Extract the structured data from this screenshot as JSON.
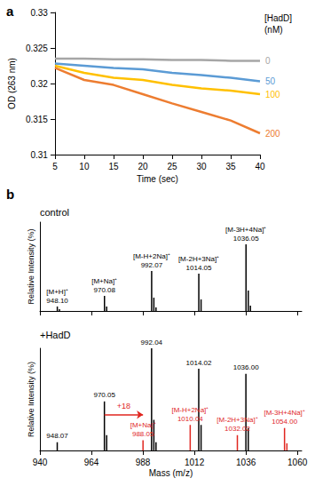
{
  "chart_data": [
    {
      "type": "line",
      "label": "a",
      "x_label": "Time (sec)",
      "y_label": "OD (263 nm)",
      "legend_title": [
        "[HadD]",
        "(nM)"
      ],
      "x": [
        5,
        10,
        15,
        20,
        25,
        30,
        35,
        40
      ],
      "xlim": [
        5,
        40
      ],
      "xticks": [
        5,
        10,
        15,
        20,
        25,
        30,
        35,
        40
      ],
      "ylim": [
        0.31,
        0.33
      ],
      "yticks": [
        0.31,
        0.315,
        0.32,
        0.325,
        0.33
      ],
      "grid": false,
      "series": [
        {
          "name": "0",
          "color": "#a6a6a6",
          "values": [
            0.3235,
            0.3235,
            0.3234,
            0.3234,
            0.3233,
            0.3233,
            0.3232,
            0.3232
          ]
        },
        {
          "name": "50",
          "color": "#5b9bd5",
          "values": [
            0.3228,
            0.3225,
            0.3222,
            0.322,
            0.3215,
            0.3212,
            0.3208,
            0.3203
          ]
        },
        {
          "name": "100",
          "color": "#ffc000",
          "values": [
            0.3225,
            0.3215,
            0.3208,
            0.3205,
            0.3198,
            0.3193,
            0.319,
            0.3185
          ]
        },
        {
          "name": "200",
          "color": "#ed7d31",
          "values": [
            0.3222,
            0.3205,
            0.3198,
            0.3185,
            0.3172,
            0.316,
            0.3148,
            0.313
          ]
        }
      ]
    },
    {
      "type": "bar",
      "label": "b",
      "title": "control",
      "y_label": "Relative Intensity (%)",
      "xlim": [
        940,
        1062
      ],
      "xticks": [
        940,
        964,
        988,
        1012,
        1036,
        1060
      ],
      "ylim": [
        0,
        100
      ],
      "tick_labels": false,
      "x": [
        948.1,
        949.1,
        970.08,
        971.1,
        992.07,
        993.1,
        994.1,
        1014.05,
        1015.1,
        1036.05,
        1037.1,
        1038.1
      ],
      "values": [
        5,
        2,
        17,
        5,
        45,
        15,
        4,
        42,
        13,
        75,
        23,
        6
      ],
      "colors": [
        "#000000",
        "#000000",
        "#000000",
        "#000000",
        "#000000",
        "#000000",
        "#000000",
        "#000000",
        "#000000",
        "#000000",
        "#000000",
        "#000000"
      ],
      "ion_labels": [
        "[M+H]⁺",
        null,
        "[M+Na]⁺",
        null,
        "[M-H+2Na]⁺",
        null,
        null,
        "[M-2H+3Na]⁺",
        null,
        "[M-3H+4Na]⁺",
        null,
        null
      ],
      "peak_labels": [
        "948.10",
        null,
        "970.08",
        null,
        "992.07",
        null,
        null,
        "1014.05",
        null,
        "1036.05",
        null,
        null
      ]
    },
    {
      "type": "bar",
      "title": "+HadD",
      "x_label": "Mass (m/z)",
      "y_label": "Relative Intensity (%)",
      "xlim": [
        940,
        1062
      ],
      "xticks": [
        940,
        964,
        988,
        1012,
        1036,
        1060
      ],
      "ylim": [
        0,
        100
      ],
      "tick_labels": "x",
      "x": [
        948.07,
        970.05,
        971.1,
        988.05,
        992.04,
        993.1,
        994.1,
        1010.04,
        1014.02,
        1015.1,
        1032.02,
        1036.0,
        1037.1,
        1054.0,
        1055.1
      ],
      "values": [
        8,
        48,
        15,
        10,
        100,
        30,
        8,
        25,
        80,
        25,
        15,
        75,
        22,
        22,
        7
      ],
      "colors": [
        "#000000",
        "#000000",
        "#000000",
        "#e0261f",
        "#000000",
        "#000000",
        "#000000",
        "#e0261f",
        "#000000",
        "#000000",
        "#e0261f",
        "#000000",
        "#000000",
        "#e0261f",
        "#e0261f"
      ],
      "ion_labels": [
        null,
        null,
        null,
        "[M+Na]⁺",
        null,
        null,
        null,
        "[M-H+2Na]⁺",
        null,
        null,
        "[M-2H+3Na]⁺",
        null,
        null,
        "[M-3H+4Na]⁺",
        null
      ],
      "peak_labels": [
        "948.07",
        "970.05",
        null,
        "988.05",
        "992.04",
        null,
        null,
        "1010.04",
        "1014.02",
        null,
        "1032.02",
        "1036.00",
        null,
        "1054.00",
        null
      ],
      "arrow": {
        "from": 970.05,
        "to": 988.05,
        "y": 35,
        "text": "+18",
        "color": "#e0261f"
      }
    }
  ]
}
